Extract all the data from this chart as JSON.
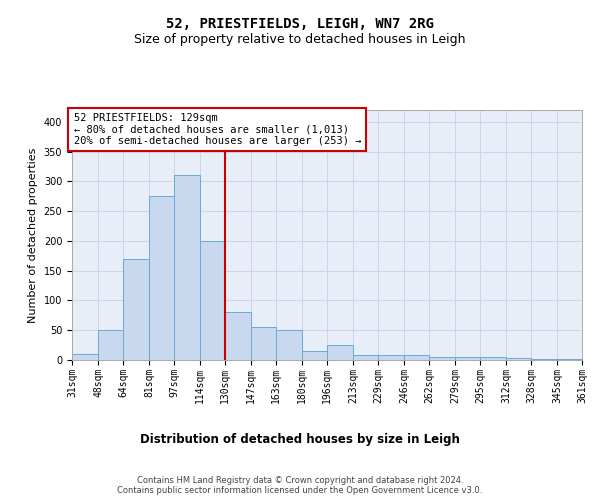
{
  "title_line1": "52, PRIESTFIELDS, LEIGH, WN7 2RG",
  "title_line2": "Size of property relative to detached houses in Leigh",
  "xlabel": "Distribution of detached houses by size in Leigh",
  "ylabel": "Number of detached properties",
  "bin_labels": [
    "31sqm",
    "48sqm",
    "64sqm",
    "81sqm",
    "97sqm",
    "114sqm",
    "130sqm",
    "147sqm",
    "163sqm",
    "180sqm",
    "196sqm",
    "213sqm",
    "229sqm",
    "246sqm",
    "262sqm",
    "279sqm",
    "295sqm",
    "312sqm",
    "328sqm",
    "345sqm",
    "361sqm"
  ],
  "bin_edges": [
    31,
    48,
    64,
    81,
    97,
    114,
    130,
    147,
    163,
    180,
    196,
    213,
    229,
    246,
    262,
    279,
    295,
    312,
    328,
    345,
    361
  ],
  "bar_values": [
    10,
    50,
    170,
    275,
    310,
    200,
    80,
    55,
    50,
    15,
    25,
    8,
    8,
    8,
    5,
    5,
    5,
    3,
    2,
    2
  ],
  "bar_color": "#c8d8ee",
  "bar_edge_color": "#6aaad4",
  "vline_x": 130,
  "vline_color": "#cc0000",
  "annotation_line1": "52 PRIESTFIELDS: 129sqm",
  "annotation_line2": "← 80% of detached houses are smaller (1,013)",
  "annotation_line3": "20% of semi-detached houses are larger (253) →",
  "annotation_box_color": "#cc0000",
  "ylim": [
    0,
    420
  ],
  "yticks": [
    0,
    50,
    100,
    150,
    200,
    250,
    300,
    350,
    400
  ],
  "grid_color": "#ccd5e8",
  "background_color": "#e8eef8",
  "footer_text": "Contains HM Land Registry data © Crown copyright and database right 2024.\nContains public sector information licensed under the Open Government Licence v3.0.",
  "title_fontsize": 10,
  "subtitle_fontsize": 9,
  "xlabel_fontsize": 8.5,
  "ylabel_fontsize": 8,
  "tick_fontsize": 7,
  "annotation_fontsize": 7.5,
  "footer_fontsize": 6
}
